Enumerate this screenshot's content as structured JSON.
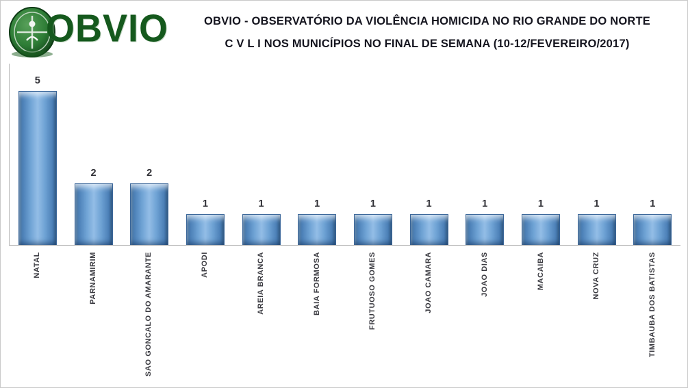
{
  "header": {
    "logo": {
      "text": "OBVIO"
    },
    "title_line1": "OBVIO - OBSERVATÓRIO DA VIOLÊNCIA HOMICIDA NO RIO GRANDE DO NORTE",
    "title_line2": "C V L I  NOS MUNICÍPIOS NO FINAL DE SEMANA  (10-12/FEVEREIRO/2017)"
  },
  "chart_data": {
    "type": "bar",
    "title": "OBVIO - OBSERVATÓRIO DA VIOLÊNCIA HOMICIDA NO RIO GRANDE DO NORTE",
    "subtitle": "C V L I NOS MUNICÍPIOS NO FINAL DE SEMANA (10-12/FEVEREIRO/2017)",
    "categories": [
      "NATAL",
      "PARNAMIRIM",
      "SAO GONCALO DO AMARANTE",
      "APODI",
      "AREIA BRANCA",
      "BAIA FORMOSA",
      "FRUTUOSO GOMES",
      "JOAO CAMARA",
      "JOAO DIAS",
      "MACAIBA",
      "NOVA CRUZ",
      "TIMBAUBA DOS BATISTAS"
    ],
    "values": [
      5,
      2,
      2,
      1,
      1,
      1,
      1,
      1,
      1,
      1,
      1,
      1
    ],
    "xlabel": "",
    "ylabel": "",
    "ylim": [
      0,
      5
    ],
    "grid": false,
    "legend": "none",
    "data_labels": true,
    "bar_color": "#4f81bd",
    "x_tick_rotation": 90
  },
  "colors": {
    "logo_green": "#15591d",
    "title_text": "#15151f",
    "axis_line": "#b9b9b9",
    "bar_main": "#4f81bd",
    "bar_edge": "#35628f",
    "bar_highlight": "#93bde6"
  }
}
